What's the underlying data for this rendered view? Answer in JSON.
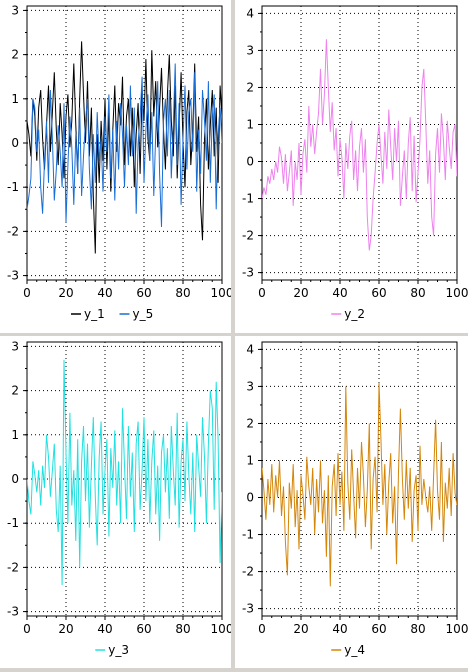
{
  "chart_data": [
    {
      "type": "line",
      "x_ticks": [
        "0",
        "20",
        "40",
        "60",
        "80",
        "100"
      ],
      "y_ticks": [
        "-3",
        "-2",
        "-1",
        "0",
        "1",
        "2",
        "3"
      ],
      "xlim": [
        0,
        100
      ],
      "ylim": [
        -3.1,
        3.1
      ],
      "grid": true,
      "legend": "bottom",
      "series": [
        {
          "name": "y_1",
          "color": "#000000",
          "values": [
            0.5,
            0.2,
            -0.3,
            1.0,
            0.6,
            -0.4,
            0.8,
            1.2,
            0.1,
            -0.6,
            0.4,
            1.3,
            -0.2,
            0.7,
            1.6,
            0.3,
            -0.5,
            0.9,
            0.2,
            -0.8,
            0.6,
            1.1,
            -0.1,
            0.5,
            1.8,
            0.4,
            -0.7,
            1.0,
            2.3,
            1.1,
            0.0,
            1.4,
            -0.3,
            0.8,
            -1.2,
            -2.5,
            0.2,
            -0.9,
            0.5,
            -0.4,
            1.0,
            -0.6,
            0.7,
            -1.1,
            0.3,
            1.3,
            -0.2,
            0.9,
            0.4,
            1.5,
            -0.5,
            0.6,
            1.0,
            -0.3,
            0.8,
            -1.0,
            0.2,
            0.9,
            -0.7,
            1.2,
            0.5,
            1.9,
            0.1,
            -0.4,
            2.1,
            0.6,
            1.4,
            -0.1,
            0.8,
            1.7,
            0.3,
            -0.6,
            1.1,
            2.0,
            0.5,
            -0.3,
            1.3,
            -0.8,
            0.4,
            1.6,
            0.0,
            -1.0,
            0.7,
            1.2,
            -0.5,
            0.3,
            1.8,
            -0.2,
            0.6,
            -1.4,
            -2.2,
            0.1,
            1.0,
            -0.6,
            0.4,
            1.2,
            -0.3,
            0.8,
            -0.9,
            1.3,
            0.6
          ]
        },
        {
          "name": "y_5",
          "color": "#1a6fd6",
          "values": [
            -1.5,
            -1.2,
            -0.8,
            1.0,
            0.8,
            -0.2,
            0.3,
            -1.0,
            -1.6,
            -0.4,
            0.5,
            -0.9,
            1.2,
            0.1,
            -1.3,
            -0.6,
            0.4,
            -0.2,
            -1.0,
            0.9,
            -1.8,
            -0.5,
            0.6,
            -0.1,
            -1.4,
            0.2,
            -0.7,
            0.8,
            -1.2,
            -0.3,
            0.5,
            1.0,
            -0.6,
            -1.5,
            0.2,
            -0.9,
            0.7,
            -0.4,
            0.1,
            -1.1,
            0.6,
            -0.2,
            1.1,
            -0.8,
            0.3,
            -1.3,
            0.5,
            -0.6,
            0.9,
            0.2,
            -1.0,
            0.4,
            -0.5,
            1.3,
            -0.3,
            0.8,
            -1.6,
            0.0,
            0.6,
            1.5,
            -0.9,
            0.3,
            1.1,
            -0.4,
            0.7,
            -1.2,
            0.2,
            1.4,
            -0.7,
            -1.9,
            0.5,
            1.0,
            -0.3,
            1.2,
            -0.8,
            0.4,
            1.8,
            -0.5,
            0.9,
            -1.4,
            0.1,
            1.3,
            -0.6,
            0.7,
            1.0,
            -0.2,
            1.6,
            -1.1,
            0.3,
            -0.7,
            1.2,
            0.5,
            -0.4,
            1.4,
            -0.9,
            0.6,
            1.1,
            -1.5,
            0.2,
            0.8,
            0.0
          ]
        }
      ]
    },
    {
      "type": "line",
      "x_ticks": [
        "0",
        "20",
        "40",
        "60",
        "80",
        "100"
      ],
      "y_ticks": [
        "-3",
        "-2",
        "-1",
        "0",
        "1",
        "2",
        "3",
        "4"
      ],
      "xlim": [
        0,
        100
      ],
      "ylim": [
        -3.2,
        4.2
      ],
      "grid": true,
      "legend": "bottom",
      "series": [
        {
          "name": "y_2",
          "color": "#ee82ee",
          "values": [
            -1.0,
            -0.7,
            -0.9,
            -0.4,
            -0.6,
            -0.2,
            -0.5,
            0.0,
            -0.3,
            0.4,
            0.1,
            -0.6,
            0.2,
            -0.8,
            -0.3,
            0.3,
            -1.2,
            0.0,
            -0.5,
            0.5,
            -0.9,
            0.2,
            0.6,
            -0.3,
            1.5,
            0.4,
            1.0,
            0.2,
            0.8,
            1.3,
            2.5,
            1.0,
            1.8,
            3.3,
            2.0,
            0.8,
            1.6,
            0.3,
            0.9,
            -0.4,
            0.6,
            0.1,
            -1.0,
            0.5,
            -0.2,
            0.7,
            1.1,
            -0.5,
            0.3,
            -0.8,
            0.4,
            0.9,
            -0.3,
            0.6,
            -1.5,
            -2.4,
            -2.0,
            -1.0,
            -0.3,
            0.5,
            1.0,
            0.2,
            -0.6,
            0.8,
            -0.2,
            1.4,
            0.4,
            -0.5,
            0.9,
            0.0,
            1.1,
            -1.2,
            -0.4,
            0.3,
            -1.0,
            0.5,
            1.2,
            -0.8,
            0.7,
            -1.1,
            -0.3,
            0.6,
            2.0,
            2.5,
            1.0,
            -0.6,
            0.3,
            -1.5,
            -2.0,
            0.2,
            0.9,
            -0.3,
            1.3,
            0.6,
            -0.5,
            1.1,
            0.4,
            -0.2,
            0.8,
            1.0,
            -0.4
          ]
        }
      ]
    },
    {
      "type": "line",
      "x_ticks": [
        "0",
        "20",
        "40",
        "60",
        "80",
        "100"
      ],
      "y_ticks": [
        "-3",
        "-2",
        "-1",
        "0",
        "1",
        "2",
        "3"
      ],
      "xlim": [
        0,
        100
      ],
      "ylim": [
        -3.1,
        3.1
      ],
      "grid": true,
      "legend": "bottom",
      "series": [
        {
          "name": "y_3",
          "color": "#22e0e0",
          "values": [
            0.0,
            -0.5,
            -0.8,
            0.4,
            0.1,
            -0.3,
            0.2,
            -0.6,
            0.3,
            -0.2,
            1.0,
            0.5,
            -0.4,
            0.2,
            0.8,
            -0.7,
            -1.2,
            0.3,
            -2.4,
            2.7,
            0.6,
            -1.0,
            1.5,
            -0.6,
            0.2,
            -1.4,
            0.9,
            -2.0,
            0.4,
            1.2,
            -0.5,
            0.8,
            -1.1,
            0.3,
            1.4,
            -0.4,
            -1.5,
            0.5,
            1.3,
            -0.8,
            0.2,
            0.9,
            -1.3,
            0.7,
            -0.2,
            1.1,
            -0.6,
            0.4,
            -1.0,
            1.6,
            0.3,
            -0.9,
            1.2,
            -0.4,
            0.6,
            -1.2,
            0.8,
            1.3,
            -0.7,
            0.2,
            1.4,
            -0.5,
            0.9,
            -1.0,
            0.4,
            1.1,
            -0.8,
            0.3,
            -1.4,
            0.6,
            1.0,
            -0.3,
            0.7,
            -0.9,
            1.2,
            0.2,
            -0.6,
            1.5,
            -1.1,
            0.4,
            0.9,
            -0.5,
            1.3,
            0.1,
            -0.8,
            0.6,
            -1.2,
            1.0,
            0.3,
            -0.4,
            1.4,
            0.5,
            -1.0,
            0.8,
            2.0,
            1.6,
            -0.7,
            2.2,
            0.9,
            -1.9,
            -0.3
          ]
        }
      ]
    },
    {
      "type": "line",
      "x_ticks": [
        "0",
        "20",
        "40",
        "60",
        "80",
        "100"
      ],
      "y_ticks": [
        "-3",
        "-2",
        "-1",
        "0",
        "1",
        "2",
        "3",
        "4"
      ],
      "xlim": [
        0,
        100
      ],
      "ylim": [
        -3.2,
        4.2
      ],
      "grid": true,
      "legend": "bottom",
      "series": [
        {
          "name": "y_4",
          "color": "#d4860a",
          "values": [
            0.8,
            0.2,
            -0.6,
            0.5,
            -0.2,
            0.9,
            -0.4,
            0.6,
            0.0,
            1.0,
            -0.5,
            0.3,
            -1.2,
            -2.1,
            0.4,
            -0.3,
            0.9,
            -0.8,
            0.2,
            -1.4,
            0.6,
            0.1,
            -0.6,
            1.1,
            0.3,
            -0.2,
            0.8,
            -1.0,
            0.5,
            -0.4,
            1.0,
            -0.7,
            0.2,
            -1.6,
            0.6,
            -2.4,
            0.3,
            0.9,
            -0.5,
            1.2,
            -0.2,
            0.7,
            -0.9,
            3.0,
            0.4,
            -0.6,
            1.3,
            0.1,
            -1.1,
            0.8,
            -0.3,
            1.5,
            0.6,
            -0.8,
            0.2,
            2.0,
            -1.4,
            0.5,
            1.1,
            -0.4,
            3.1,
            1.6,
            -0.2,
            0.9,
            -1.0,
            0.4,
            1.2,
            -0.7,
            0.3,
            -1.8,
            0.7,
            2.4,
            0.5,
            -0.6,
            1.0,
            -0.3,
            0.8,
            -1.2,
            0.2,
            0.6,
            -0.9,
            1.4,
            -0.2,
            0.5,
            0.0,
            -0.4,
            0.3,
            -0.9,
            0.6,
            2.1,
            0.2,
            -0.6,
            1.5,
            -1.2,
            0.4,
            -0.3,
            0.8,
            -0.5,
            1.2,
            0.1,
            -0.2
          ]
        }
      ]
    }
  ]
}
